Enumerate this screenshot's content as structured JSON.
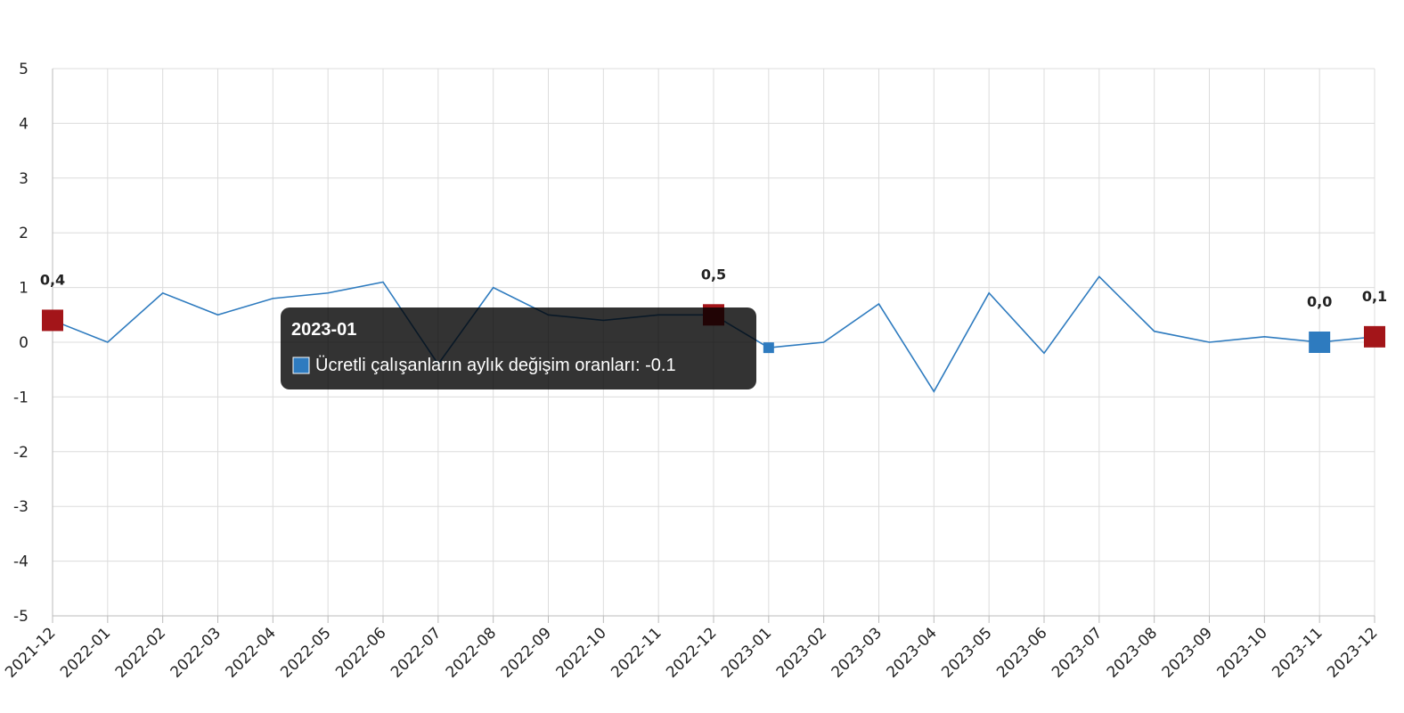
{
  "chart_data": {
    "type": "line",
    "categories": [
      "2021-12",
      "2022-01",
      "2022-02",
      "2022-03",
      "2022-04",
      "2022-05",
      "2022-06",
      "2022-07",
      "2022-08",
      "2022-09",
      "2022-10",
      "2022-11",
      "2022-12",
      "2023-01",
      "2023-02",
      "2023-03",
      "2023-04",
      "2023-05",
      "2023-06",
      "2023-07",
      "2023-08",
      "2023-09",
      "2023-10",
      "2023-11",
      "2023-12"
    ],
    "series": [
      {
        "name": "Ücretli çalışanların aylık değişim oranları",
        "color": "#2e7bbf",
        "values": [
          0.4,
          0.0,
          0.9,
          0.5,
          0.8,
          0.9,
          1.1,
          -0.4,
          1.0,
          0.5,
          0.4,
          0.5,
          0.5,
          -0.1,
          0.0,
          0.7,
          -0.9,
          0.9,
          -0.2,
          1.2,
          0.2,
          0.0,
          0.1,
          0.0,
          0.1
        ],
        "value_labels": [
          "0,4",
          null,
          null,
          null,
          null,
          null,
          null,
          null,
          null,
          null,
          null,
          null,
          "0,5",
          null,
          null,
          null,
          null,
          null,
          null,
          null,
          null,
          null,
          null,
          "0,0",
          "0,1"
        ],
        "point_colors": [
          "#a31519",
          null,
          null,
          null,
          null,
          null,
          null,
          null,
          null,
          null,
          null,
          null,
          "#a31519",
          "#2e7bbf",
          null,
          null,
          null,
          null,
          null,
          null,
          null,
          null,
          null,
          "#2e7bbf",
          "#a31519"
        ]
      }
    ],
    "ylim": [
      -5,
      5
    ],
    "yticks": [
      -5,
      -4,
      -3,
      -2,
      -1,
      0,
      1,
      2,
      3,
      4,
      5
    ],
    "grid": true,
    "tooltip": {
      "title": "2023-01",
      "text": "Ücretli çalışanların aylık değişim oranları: -0.1"
    }
  }
}
